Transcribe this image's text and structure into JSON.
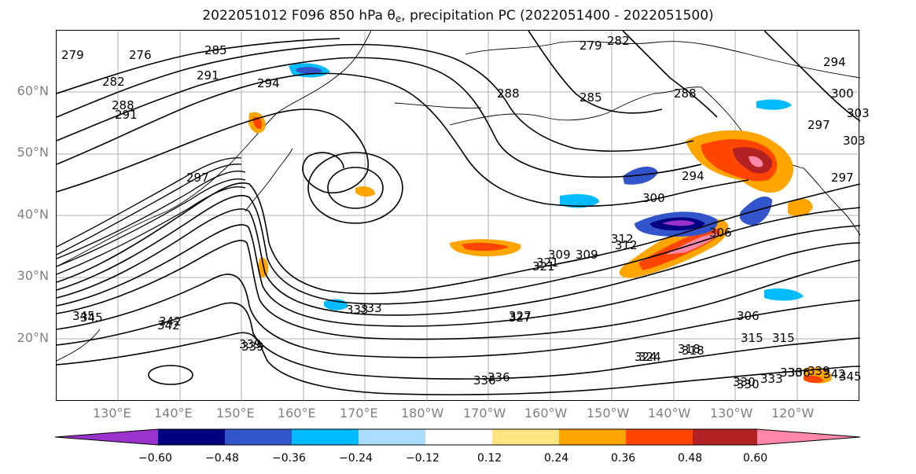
{
  "title": {
    "prefix": "2022051012 F096 850 hPa θ",
    "subscript": "e",
    "suffix": ", precipitation PC (2022051400 - 2022051500)"
  },
  "lat_labels": [
    "60°N",
    "50°N",
    "40°N",
    "30°N",
    "20°N"
  ],
  "lon_labels": [
    "130°E",
    "140°E",
    "150°E",
    "160°E",
    "170°E",
    "180°W",
    "170°W",
    "160°W",
    "150°W",
    "140°W",
    "130°W",
    "120°W"
  ],
  "colorbar": {
    "ticks": [
      "−0.60",
      "−0.48",
      "−0.36",
      "−0.24",
      "−0.12",
      "0.12",
      "0.24",
      "0.36",
      "0.48",
      "0.60"
    ],
    "colors": [
      "#9933cc",
      "#000080",
      "#3355cc",
      "#00bbff",
      "#aaddff",
      "#ffffff",
      "#ffe680",
      "#ffa500",
      "#ff4500",
      "#b22222",
      "#ff88aa"
    ]
  },
  "contour_labels": [
    "279",
    "276",
    "285",
    "291",
    "282",
    "288",
    "294",
    "291",
    "297",
    "300",
    "303",
    "306",
    "309",
    "312",
    "315",
    "318",
    "321",
    "324",
    "327",
    "330",
    "333",
    "336",
    "339",
    "342",
    "345",
    "279",
    "282",
    "285",
    "288",
    "288",
    "294",
    "294",
    "297",
    "297",
    "300",
    "303",
    "309",
    "312",
    "321",
    "306",
    "315",
    "318",
    "324",
    "327",
    "330",
    "333",
    "336",
    "339",
    "342",
    "345",
    "330",
    "333",
    "336",
    "339",
    "342",
    "345"
  ]
}
